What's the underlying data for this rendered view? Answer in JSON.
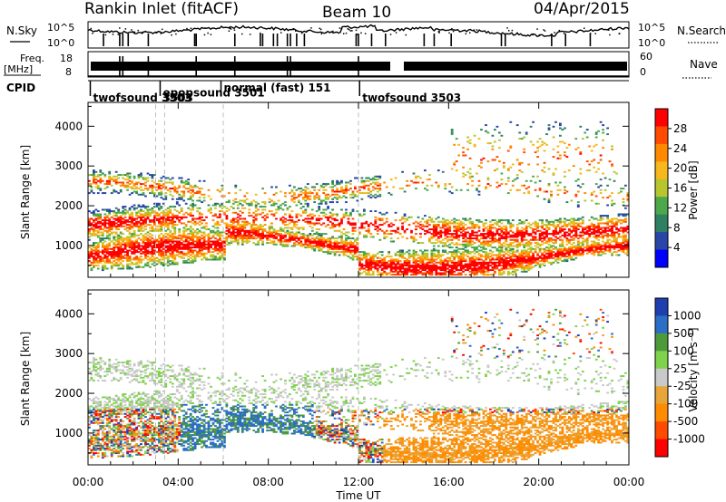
{
  "header": {
    "station": "Rankin Inlet (fitACF)",
    "beam": "Beam 10",
    "date": "04/Apr/2015"
  },
  "strip_labels": {
    "nsky": "N.Sky",
    "nsearch": "N.Search",
    "freq_line1": "Freq.",
    "freq_line2": "[MHz]",
    "nave": "Nave",
    "cpid": "CPID"
  },
  "strip_ticks": {
    "nsky_left": [
      "10^5",
      "10^0"
    ],
    "nsky_right": [
      "10^5",
      "10^0"
    ],
    "freq_left": [
      "18",
      "8"
    ],
    "nave_right": [
      "60",
      "0"
    ]
  },
  "cpid_labels": [
    {
      "text": "twofsound 3503",
      "hour": 0.1,
      "row": 2
    },
    {
      "text": "epopsound 3501",
      "hour": 3.2,
      "row": 1
    },
    {
      "text": "normal (fast) 151",
      "hour": 5.9,
      "row": 0
    },
    {
      "text": "3503",
      "hour": 3.2,
      "row": 2
    },
    {
      "text": "twofsound 3503",
      "hour": 12.05,
      "row": 2
    }
  ],
  "x_axis": {
    "label": "Time UT",
    "ticks": [
      "00:00",
      "04:00",
      "08:00",
      "12:00",
      "16:00",
      "20:00",
      "00:00"
    ],
    "range_hours": [
      0,
      24
    ]
  },
  "colors": {
    "power_scale": [
      "#0000ff",
      "#2a45a8",
      "#2f7f62",
      "#4ca84a",
      "#b7c62f",
      "#f6b81c",
      "#ff8a00",
      "#ff4a00",
      "#ff0000"
    ],
    "velocity_scale": [
      "#1f3fae",
      "#2a6ec6",
      "#4e9a3a",
      "#7ed34d",
      "#c9c9c9",
      "#e7a53a",
      "#ff8c00",
      "#ff4b00",
      "#ff0000"
    ]
  },
  "chart_data": [
    {
      "type": "heatmap",
      "panel": "power",
      "ylabel": "Slant Range [km]",
      "yticks": [
        1000,
        2000,
        3000,
        4000
      ],
      "ylim": [
        200,
        4600
      ],
      "xlim_hours": [
        0,
        24
      ],
      "colorbar": {
        "label": "Power [dB]",
        "ticks": [
          "4",
          "8",
          "12",
          "16",
          "20",
          "24",
          "28"
        ],
        "range": [
          0,
          30
        ]
      }
    },
    {
      "type": "heatmap",
      "panel": "velocity",
      "ylabel": "Slant Range [km]",
      "yticks": [
        1000,
        2000,
        3000,
        4000
      ],
      "ylim": [
        200,
        4600
      ],
      "xlim_hours": [
        0,
        24
      ],
      "colorbar": {
        "label": "Velocity [m s⁻¹]",
        "ticks": [
          "1000",
          "500",
          "100",
          "25",
          "-25",
          "-100",
          "-500",
          "-1000"
        ]
      }
    }
  ]
}
